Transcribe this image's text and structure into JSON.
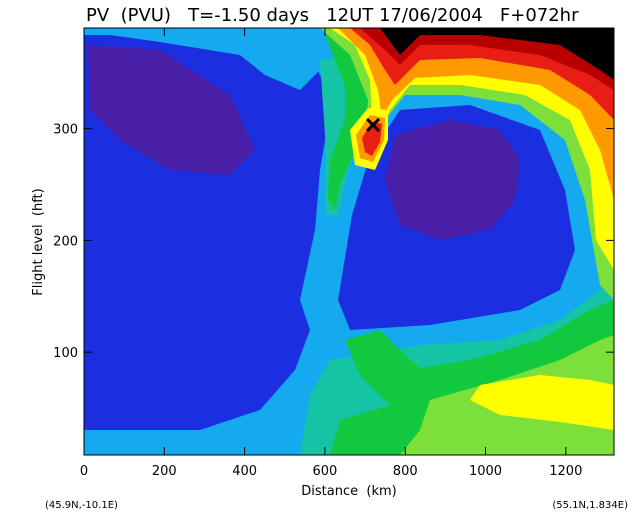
{
  "chart_data": {
    "type": "heatmap",
    "title": "PV  (PVU)   T=-1.50 days   12UT 17/06/2004   F+072hr",
    "xlabel": "Distance  (km)",
    "ylabel": "Flight level  (hft)",
    "xlim": [
      0,
      1320
    ],
    "ylim": [
      8,
      390
    ],
    "x_ticks": [
      0,
      200,
      400,
      600,
      800,
      1000,
      1200
    ],
    "y_ticks": [
      100,
      200,
      300
    ],
    "corner_labels": {
      "left": "(45.9N,-10.1E)",
      "right": "(55.1N,1.834E)"
    },
    "marker": {
      "symbol": "X",
      "x": 718,
      "y": 300
    },
    "grid": false,
    "colors": {
      "purple": "#4a1fa8",
      "blue": "#1c2fe0",
      "light_blue": "#15a9f0",
      "green_blue": "#14c4a4",
      "green": "#12c83e",
      "light_green": "#7de03a",
      "yellow": "#ffff00",
      "orange": "#ff9900",
      "red": "#e81e14",
      "dark_red": "#b80000",
      "black": "#000000"
    }
  }
}
